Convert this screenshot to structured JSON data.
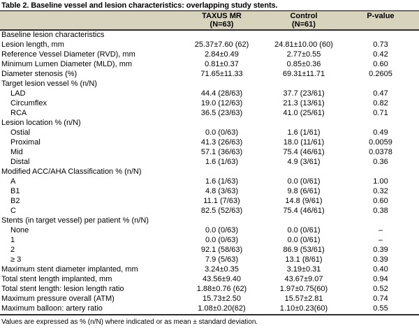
{
  "title": "Table 2. Baseline vessel and lesion characteristics: overlapping study stents.",
  "colors": {
    "header_bg": "#d8d3bc",
    "rule_dark": "#2e2e2e",
    "rule_thin": "#000000"
  },
  "columns": [
    {
      "line1": "",
      "line2": ""
    },
    {
      "line1": "TAXUS MR",
      "line2": "(N=63)"
    },
    {
      "line1": "Control",
      "line2": "(N=61)"
    },
    {
      "line1": "P-value",
      "line2": ""
    }
  ],
  "rows": [
    {
      "label": "Baseline lesion characteristics",
      "indent": false,
      "taxus": "",
      "control": "",
      "p": ""
    },
    {
      "label": "Lesion length, mm",
      "indent": false,
      "taxus": "25.37±7.60 (62)",
      "control": "24.81±10.00 (60)",
      "p": "0.73"
    },
    {
      "label": "Reference Vessel Diameter (RVD), mm",
      "indent": false,
      "taxus": "2.84±0.49",
      "control": "2.77±0.55",
      "p": "0.42"
    },
    {
      "label": "Minimum Lumen Diameter (MLD), mm",
      "indent": false,
      "taxus": "0.81±0.37",
      "control": "0.85±0.36",
      "p": "0.60"
    },
    {
      "label": "Diameter stenosis (%)",
      "indent": false,
      "taxus": "71.65±11.33",
      "control": "69.31±11.71",
      "p": "0.2605"
    },
    {
      "label": "Target lesion vessel % (n/N)",
      "indent": false,
      "taxus": "",
      "control": "",
      "p": ""
    },
    {
      "label": "LAD",
      "indent": true,
      "taxus": "44.4 (28/63)",
      "control": "37.7 (23/61)",
      "p": "0.47"
    },
    {
      "label": "Circumflex",
      "indent": true,
      "taxus": "19.0 (12/63)",
      "control": "21.3 (13/61)",
      "p": "0.82"
    },
    {
      "label": "RCA",
      "indent": true,
      "taxus": "36.5 (23/63)",
      "control": "41.0 (25/61)",
      "p": "0.71"
    },
    {
      "label": "Lesion location % (n/N)",
      "indent": false,
      "taxus": "",
      "control": "",
      "p": ""
    },
    {
      "label": "Ostial",
      "indent": true,
      "taxus": "0.0 (0/63)",
      "control": "1.6 (1/61)",
      "p": "0.49"
    },
    {
      "label": "Proximal",
      "indent": true,
      "taxus": "41.3 (26/63)",
      "control": "18.0 (11/61)",
      "p": "0.0059"
    },
    {
      "label": "Mid",
      "indent": true,
      "taxus": "57.1 (36/63)",
      "control": "75.4 (46/61)",
      "p": "0.0378"
    },
    {
      "label": "Distal",
      "indent": true,
      "taxus": "1.6 (1/63)",
      "control": "4.9 (3/61)",
      "p": "0.36"
    },
    {
      "label": "Modified ACC/AHA Classification % (n/N)",
      "indent": false,
      "taxus": "",
      "control": "",
      "p": ""
    },
    {
      "label": "A",
      "indent": true,
      "taxus": "1.6 (1/63)",
      "control": "0.0 (0/61)",
      "p": "1.00"
    },
    {
      "label": "B1",
      "indent": true,
      "taxus": "4.8 (3/63)",
      "control": "9.8 (6/61)",
      "p": "0.32"
    },
    {
      "label": "B2",
      "indent": true,
      "taxus": "11.1 (7/63)",
      "control": "14.8 (9/61)",
      "p": "0.60"
    },
    {
      "label": "C",
      "indent": true,
      "taxus": "82.5 (52/63)",
      "control": "75.4 (46/61)",
      "p": "0.38"
    },
    {
      "label": "Stents (in target vessel) per patient % (n/N)",
      "indent": false,
      "taxus": "",
      "control": "",
      "p": ""
    },
    {
      "label": "None",
      "indent": true,
      "taxus": "0.0 (0/63)",
      "control": "0.0 (0/61)",
      "p": "–"
    },
    {
      "label": "1",
      "indent": true,
      "taxus": "0.0 (0/63)",
      "control": "0.0 (0/61)",
      "p": "–"
    },
    {
      "label": "2",
      "indent": true,
      "taxus": "92.1 (58/63)",
      "control": "86.9 (53/61)",
      "p": "0.39"
    },
    {
      "label": "≥ 3",
      "indent": true,
      "taxus": "7.9 (5/63)",
      "control": "13.1 (8/61)",
      "p": "0.39"
    },
    {
      "label": "Maximum stent diameter implanted, mm",
      "indent": false,
      "taxus": "3.24±0.35",
      "control": "3.19±0.31",
      "p": "0.40"
    },
    {
      "label": "Total stent length implanted, mm",
      "indent": false,
      "taxus": "43.56±9.40",
      "control": "43.67±9.07",
      "p": "0.94"
    },
    {
      "label": "Total stent length: lesion length ratio",
      "indent": false,
      "taxus": "1.88±0.76 (62)",
      "control": "1.97±0.75(60)",
      "p": "0.52"
    },
    {
      "label": "Maximum pressure overall (ATM)",
      "indent": false,
      "taxus": "15.73±2.50",
      "control": "15.57±2.81",
      "p": "0.74"
    },
    {
      "label": "Maximum balloon: artery ratio",
      "indent": false,
      "taxus": "1.08±0.20(62)",
      "control": "1.10±0.23(60)",
      "p": "0.55"
    }
  ],
  "footnote": "Values are expressed as % (n/N) where indicated or as mean ± standard deviation."
}
